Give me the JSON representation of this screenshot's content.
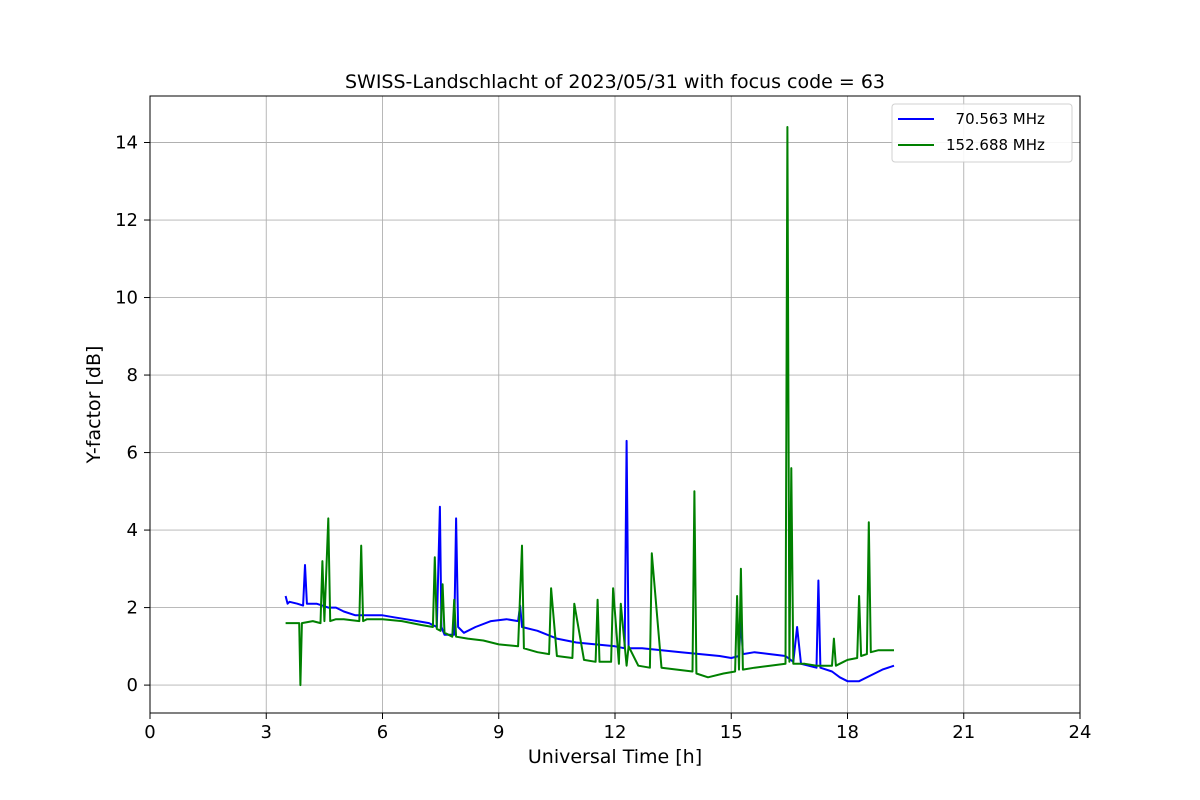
{
  "chart_data": {
    "type": "line",
    "title": "SWISS-Landschlacht of 2023/05/31 with focus code = 63",
    "xlabel": "Universal Time [h]",
    "ylabel": "Y-factor [dB]",
    "xlim": [
      0,
      24
    ],
    "ylim": [
      -0.72,
      15.2
    ],
    "xticks": [
      0,
      3,
      6,
      9,
      12,
      15,
      18,
      21,
      24
    ],
    "xtick_labels": [
      "0",
      "3",
      "6",
      "9",
      "12",
      "15",
      "18",
      "21",
      "24"
    ],
    "yticks": [
      0,
      2,
      4,
      6,
      8,
      10,
      12,
      14
    ],
    "ytick_labels": [
      "0",
      "2",
      "4",
      "6",
      "8",
      "10",
      "12",
      "14"
    ],
    "grid": true,
    "legend_position": "top-right",
    "series": [
      {
        "name": "  70.563 MHz",
        "color": "#0000ff",
        "x": [
          3.5,
          3.55,
          3.6,
          3.8,
          3.95,
          4.0,
          4.05,
          4.3,
          4.6,
          4.8,
          5.0,
          5.3,
          5.6,
          6.0,
          6.3,
          6.6,
          6.9,
          7.2,
          7.4,
          7.48,
          7.52,
          7.6,
          7.85,
          7.9,
          7.95,
          8.1,
          8.4,
          8.8,
          9.2,
          9.5,
          9.55,
          9.6,
          10.0,
          10.5,
          11.0,
          11.5,
          12.0,
          12.25,
          12.3,
          12.35,
          12.7,
          13.2,
          13.7,
          14.2,
          14.7,
          15.0,
          15.2,
          15.25,
          15.3,
          15.6,
          16.0,
          16.4,
          16.6,
          16.7,
          16.8,
          17.2,
          17.25,
          17.3,
          17.6,
          17.8,
          18.0,
          18.3,
          18.6,
          18.9,
          19.2
        ],
        "y": [
          2.3,
          2.1,
          2.15,
          2.1,
          2.05,
          3.1,
          2.1,
          2.1,
          2.0,
          2.0,
          1.9,
          1.8,
          1.8,
          1.8,
          1.75,
          1.7,
          1.65,
          1.6,
          1.5,
          4.6,
          1.5,
          1.3,
          1.3,
          4.3,
          1.5,
          1.35,
          1.5,
          1.65,
          1.7,
          1.65,
          2.05,
          1.5,
          1.4,
          1.2,
          1.1,
          1.05,
          1.0,
          0.95,
          6.3,
          0.95,
          0.95,
          0.9,
          0.85,
          0.8,
          0.75,
          0.7,
          0.75,
          1.7,
          0.8,
          0.85,
          0.8,
          0.75,
          0.6,
          1.5,
          0.55,
          0.45,
          2.7,
          0.45,
          0.35,
          0.2,
          0.1,
          0.1,
          0.25,
          0.4,
          0.5
        ]
      },
      {
        "name": "152.688 MHz",
        "color": "#008000",
        "x": [
          3.5,
          3.7,
          3.85,
          3.88,
          3.92,
          4.2,
          4.4,
          4.45,
          4.5,
          4.6,
          4.65,
          4.8,
          5.0,
          5.4,
          5.45,
          5.5,
          5.6,
          6.0,
          6.5,
          7.0,
          7.3,
          7.35,
          7.4,
          7.5,
          7.55,
          7.6,
          7.7,
          7.8,
          7.85,
          7.9,
          8.2,
          8.6,
          9.0,
          9.5,
          9.6,
          9.65,
          10.0,
          10.3,
          10.35,
          10.5,
          10.9,
          10.95,
          11.2,
          11.5,
          11.55,
          11.6,
          11.9,
          11.95,
          12.1,
          12.15,
          12.3,
          12.35,
          12.6,
          12.9,
          12.95,
          13.2,
          13.6,
          14.0,
          14.05,
          14.1,
          14.4,
          14.8,
          15.1,
          15.15,
          15.2,
          15.25,
          15.3,
          15.6,
          16.0,
          16.4,
          16.45,
          16.5,
          16.55,
          16.6,
          16.9,
          17.2,
          17.6,
          17.65,
          17.7,
          17.9,
          18.0,
          18.25,
          18.3,
          18.35,
          18.5,
          18.55,
          18.6,
          18.8,
          19.0,
          19.2
        ],
        "y": [
          1.6,
          1.6,
          1.6,
          0.0,
          1.6,
          1.65,
          1.6,
          3.2,
          1.65,
          4.3,
          1.65,
          1.7,
          1.7,
          1.65,
          3.6,
          1.65,
          1.7,
          1.7,
          1.65,
          1.55,
          1.5,
          3.3,
          1.45,
          1.4,
          2.6,
          1.35,
          1.3,
          1.25,
          2.2,
          1.25,
          1.2,
          1.15,
          1.05,
          1.0,
          3.6,
          0.95,
          0.85,
          0.8,
          2.5,
          0.75,
          0.7,
          2.1,
          0.65,
          0.6,
          2.2,
          0.6,
          0.6,
          2.5,
          0.55,
          2.1,
          0.5,
          1.0,
          0.5,
          0.45,
          3.4,
          0.45,
          0.4,
          0.35,
          5.0,
          0.3,
          0.2,
          0.3,
          0.35,
          2.3,
          0.4,
          3.0,
          0.4,
          0.45,
          0.5,
          0.55,
          14.4,
          0.6,
          5.6,
          0.55,
          0.55,
          0.5,
          0.5,
          1.2,
          0.5,
          0.6,
          0.65,
          0.7,
          2.3,
          0.75,
          0.8,
          4.2,
          0.85,
          0.9,
          0.9,
          0.9
        ]
      }
    ]
  }
}
